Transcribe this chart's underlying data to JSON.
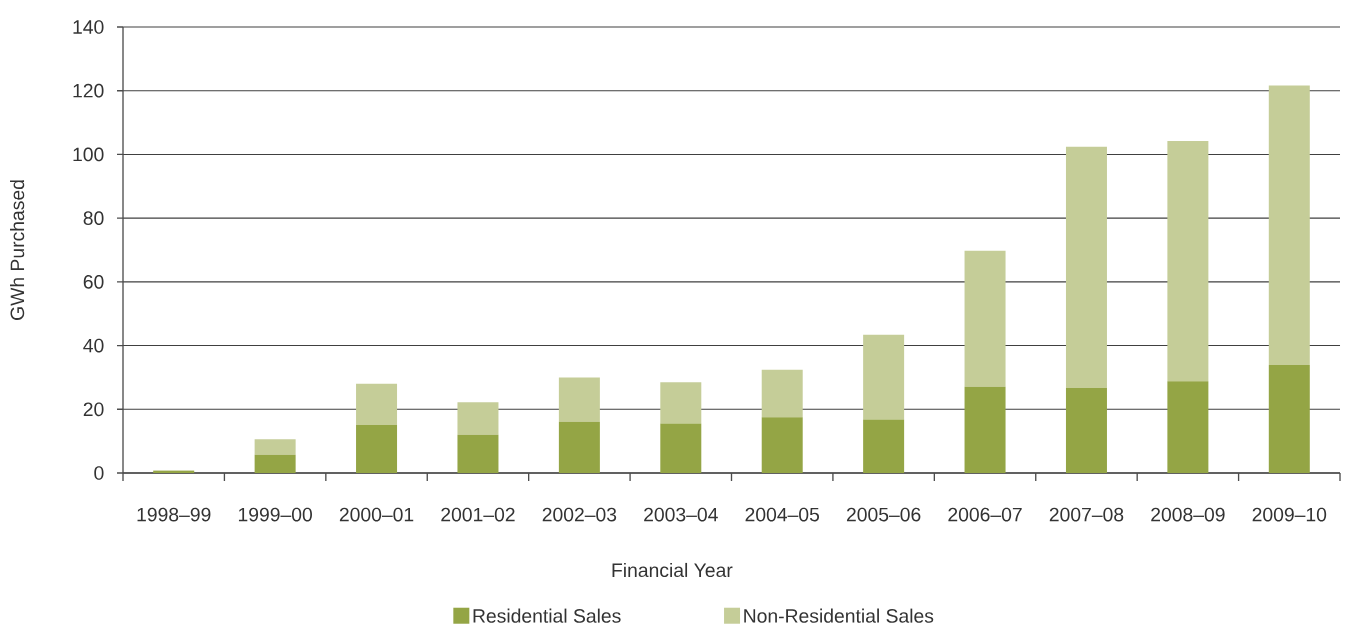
{
  "chart_data": {
    "type": "bar",
    "stacked": true,
    "xlabel": "Financial Year",
    "ylabel": "GWh Purchased",
    "categories": [
      "1998–99",
      "1999–00",
      "2000–01",
      "2001–02",
      "2002–03",
      "2003–04",
      "2004–05",
      "2005–06",
      "2006–07",
      "2007–08",
      "2008–09",
      "2009–10"
    ],
    "series": [
      {
        "name": "Residential Sales",
        "color": "#94a545",
        "values": [
          0.6,
          5.7,
          15.1,
          12.0,
          16.1,
          15.5,
          17.5,
          16.8,
          27.1,
          26.7,
          28.8,
          33.9
        ]
      },
      {
        "name": "Non-Residential Sales",
        "color": "#c5cd98",
        "values": [
          0.3,
          4.9,
          12.9,
          10.2,
          13.9,
          13.0,
          14.9,
          26.6,
          42.7,
          75.7,
          75.4,
          87.7
        ]
      }
    ],
    "ylim": [
      0,
      140
    ],
    "yticks": [
      0,
      20,
      40,
      60,
      80,
      100,
      120,
      140
    ],
    "grid": "y",
    "legend": "bottom"
  }
}
